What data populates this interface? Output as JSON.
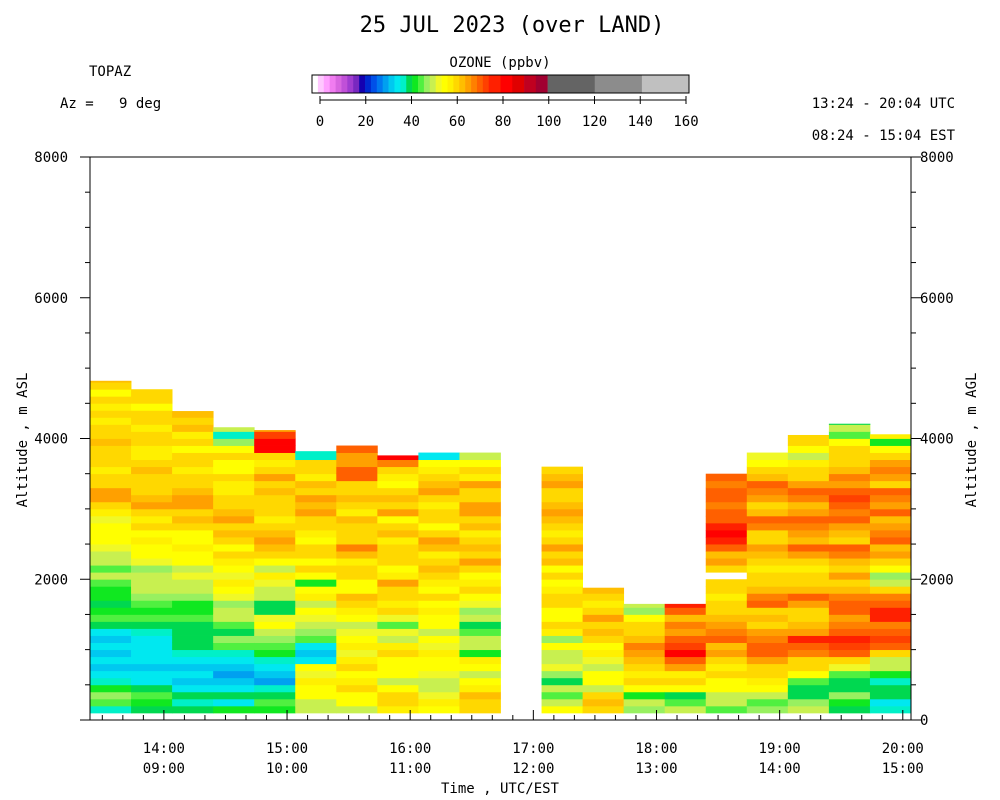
{
  "chart_data": {
    "type": "heatmap",
    "title": "25 JUL 2023 (over LAND)",
    "instrument": "TOPAZ",
    "azimuth_label": "Az =   9 deg",
    "utc_range": "13:24 - 20:04 UTC",
    "est_range": "08:24 - 15:04 EST",
    "colorbar": {
      "title": "OZONE (ppbv)",
      "tick_labels": [
        "0",
        "20",
        "40",
        "60",
        "80",
        "100",
        "120",
        "140",
        "160"
      ],
      "tick_values": [
        0,
        20,
        40,
        60,
        80,
        100,
        120,
        140,
        160
      ],
      "range": [
        0,
        160
      ],
      "stops": [
        {
          "from": 0,
          "to": 2.5,
          "color": "#ffffff"
        },
        {
          "from": 2.5,
          "to": 5,
          "color": "#ffc8ff"
        },
        {
          "from": 5,
          "to": 7.5,
          "color": "#ffa0ff"
        },
        {
          "from": 7.5,
          "to": 10,
          "color": "#f07cf0"
        },
        {
          "from": 10,
          "to": 12.5,
          "color": "#d866e0"
        },
        {
          "from": 12.5,
          "to": 15,
          "color": "#c050d8"
        },
        {
          "from": 15,
          "to": 17.5,
          "color": "#a03cd0"
        },
        {
          "from": 17.5,
          "to": 20,
          "color": "#7828c0"
        },
        {
          "from": 20,
          "to": 22.5,
          "color": "#1400b0"
        },
        {
          "from": 22.5,
          "to": 25,
          "color": "#0028d0"
        },
        {
          "from": 25,
          "to": 27.5,
          "color": "#0050e8"
        },
        {
          "from": 27.5,
          "to": 30,
          "color": "#0078f0"
        },
        {
          "from": 30,
          "to": 32.5,
          "color": "#00a0f0"
        },
        {
          "from": 32.5,
          "to": 35,
          "color": "#00c8f0"
        },
        {
          "from": 35,
          "to": 37.5,
          "color": "#00e8f0"
        },
        {
          "from": 37.5,
          "to": 40,
          "color": "#00f0c8"
        },
        {
          "from": 40,
          "to": 42.5,
          "color": "#00d850"
        },
        {
          "from": 42.5,
          "to": 45,
          "color": "#10e820"
        },
        {
          "from": 45,
          "to": 47.5,
          "color": "#50f040"
        },
        {
          "from": 47.5,
          "to": 50,
          "color": "#98f060"
        },
        {
          "from": 50,
          "to": 52.5,
          "color": "#c8f050"
        },
        {
          "from": 52.5,
          "to": 55,
          "color": "#f0f828"
        },
        {
          "from": 55,
          "to": 57.5,
          "color": "#ffff00"
        },
        {
          "from": 57.5,
          "to": 60,
          "color": "#fff000"
        },
        {
          "from": 60,
          "to": 62.5,
          "color": "#ffd800"
        },
        {
          "from": 62.5,
          "to": 65,
          "color": "#ffbe00"
        },
        {
          "from": 65,
          "to": 67.5,
          "color": "#ffa000"
        },
        {
          "from": 67.5,
          "to": 70,
          "color": "#ff8000"
        },
        {
          "from": 70,
          "to": 72.5,
          "color": "#ff6000"
        },
        {
          "from": 72.5,
          "to": 75,
          "color": "#ff4000"
        },
        {
          "from": 75,
          "to": 80,
          "color": "#ff2000"
        },
        {
          "from": 80,
          "to": 85,
          "color": "#ff0000"
        },
        {
          "from": 85,
          "to": 90,
          "color": "#e00000"
        },
        {
          "from": 90,
          "to": 95,
          "color": "#c00020"
        },
        {
          "from": 95,
          "to": 100,
          "color": "#a00030"
        },
        {
          "from": 100,
          "to": 110,
          "color": "#646464"
        },
        {
          "from": 110,
          "to": 120,
          "color": "#646464"
        },
        {
          "from": 120,
          "to": 130,
          "color": "#8c8c8c"
        },
        {
          "from": 130,
          "to": 140,
          "color": "#8c8c8c"
        },
        {
          "from": 140,
          "to": 150,
          "color": "#c0c0c0"
        },
        {
          "from": 150,
          "to": 160,
          "color": "#c0c0c0"
        }
      ]
    },
    "xaxis": {
      "label": "Time , UTC/EST",
      "range": [
        "13:24",
        "20:04"
      ],
      "tick_times_utc": [
        "14:00",
        "15:00",
        "16:00",
        "17:00",
        "18:00",
        "19:00",
        "20:00"
      ],
      "tick_labels_utc": [
        "14:00",
        "15:00",
        "16:00",
        "17:00",
        "18:00",
        "19:00",
        "20:00"
      ],
      "tick_labels_est": [
        "09:00",
        "10:00",
        "11:00",
        "12:00",
        "13:00",
        "14:00",
        "15:00"
      ]
    },
    "yaxis_left": {
      "label": "Altitude , m ASL",
      "range": [
        0,
        8000
      ],
      "tick_labels": [
        "2000",
        "4000",
        "6000",
        "8000"
      ],
      "tick_values": [
        2000,
        4000,
        6000,
        8000
      ]
    },
    "yaxis_right": {
      "label": "Altitude , m AGL",
      "tick_labels": [
        "0",
        "2000",
        "4000",
        "6000",
        "8000"
      ],
      "tick_values": [
        0,
        2000,
        4000,
        6000,
        8000
      ]
    },
    "profile_layer_thickness_m": 100,
    "profiles": [
      {
        "start": "13:24",
        "end": "13:44",
        "bottom": 100,
        "top": 4820,
        "values": [
          38,
          45,
          48,
          44,
          38,
          36,
          34,
          35,
          33,
          35,
          34,
          36,
          41,
          47,
          44,
          42,
          44,
          43,
          46,
          50,
          47,
          50,
          52,
          54,
          57,
          55,
          56,
          53,
          58,
          61,
          65,
          66,
          62,
          60,
          58,
          61,
          60,
          62,
          64,
          60,
          61,
          58,
          62,
          59,
          60,
          57,
          60,
          64,
          72
        ]
      },
      {
        "start": "13:44",
        "end": "14:04",
        "bottom": 100,
        "top": 4700,
        "values": [
          41,
          44,
          46,
          42,
          36,
          35,
          34,
          36,
          35,
          37,
          35,
          38,
          42,
          46,
          43,
          45,
          48,
          51,
          50,
          52,
          49,
          53,
          55,
          56,
          58,
          57,
          60,
          59,
          62,
          66,
          64,
          61,
          60,
          62,
          63,
          60,
          59,
          58,
          62,
          60,
          58,
          60,
          61,
          56,
          60,
          62,
          66,
          63,
          68
        ]
      },
      {
        "start": "14:04",
        "end": "14:24",
        "bottom": 100,
        "top": 4390,
        "values": [
          40,
          38,
          42,
          36,
          34,
          35,
          33,
          37,
          38,
          42,
          40,
          42,
          41,
          45,
          43,
          44,
          48,
          50,
          52,
          53,
          50,
          55,
          56,
          58,
          57,
          56,
          62,
          64,
          60,
          66,
          65,
          63,
          61,
          60,
          58,
          62,
          60,
          57,
          61,
          59,
          63,
          62,
          64,
          66,
          64,
          62,
          69
        ]
      },
      {
        "start": "14:24",
        "end": "14:44",
        "bottom": 100,
        "top": 4160,
        "values": [
          44,
          37,
          40,
          35,
          33,
          31,
          34,
          36,
          38,
          45,
          48,
          42,
          47,
          50,
          52,
          49,
          53,
          56,
          58,
          54,
          55,
          59,
          60,
          57,
          62,
          64,
          61,
          66,
          63,
          60,
          60,
          58,
          59,
          62,
          56,
          55,
          61,
          57,
          49,
          38,
          52,
          42
        ]
      },
      {
        "start": "14:44",
        "end": "15:04",
        "bottom": 100,
        "top": 4120,
        "values": [
          43,
          46,
          40,
          38,
          30,
          33,
          36,
          38,
          44,
          46,
          48,
          51,
          56,
          53,
          42,
          40,
          50,
          52,
          54,
          58,
          52,
          56,
          60,
          63,
          66,
          64,
          62,
          58,
          60,
          61,
          62,
          63,
          60,
          66,
          62,
          58,
          60,
          80,
          81,
          74,
          65
        ]
      },
      {
        "start": "15:04",
        "end": "15:24",
        "bottom": 100,
        "top": 3820,
        "values": [
          50,
          52,
          55,
          56,
          58,
          53,
          57,
          35,
          33,
          36,
          45,
          48,
          50,
          54,
          55,
          52,
          58,
          57,
          43,
          56,
          60,
          57,
          60,
          62,
          55,
          59,
          60,
          61,
          66,
          64,
          66,
          60,
          63,
          59,
          60,
          61,
          39,
          38
        ]
      },
      {
        "start": "15:24",
        "end": "15:44",
        "bottom": 100,
        "top": 3990,
        "values": [
          52,
          55,
          57,
          60,
          58,
          56,
          61,
          59,
          54,
          58,
          56,
          53,
          50,
          55,
          58,
          60,
          63,
          56,
          55,
          60,
          60,
          58,
          64,
          68,
          62,
          61,
          60,
          64,
          58,
          62,
          64,
          60,
          62,
          70,
          71,
          67,
          65,
          70
        ]
      },
      {
        "start": "15:44",
        "end": "16:04",
        "bottom": 100,
        "top": 3760,
        "values": [
          58,
          62,
          60,
          56,
          52,
          57,
          55,
          56,
          60,
          58,
          50,
          53,
          46,
          54,
          60,
          58,
          62,
          60,
          65,
          58,
          55,
          60,
          60,
          62,
          58,
          63,
          62,
          57,
          66,
          62,
          63,
          60,
          56,
          58,
          62,
          68,
          80
        ]
      },
      {
        "start": "16:04",
        "end": "16:24",
        "bottom": 100,
        "top": 3800,
        "values": [
          56,
          58,
          54,
          52,
          50,
          54,
          56,
          57,
          58,
          54,
          55,
          52,
          55,
          57,
          58,
          56,
          60,
          57,
          59,
          62,
          64,
          60,
          58,
          63,
          65,
          60,
          57,
          60,
          62,
          58,
          61,
          66,
          63,
          60,
          58,
          57,
          35
        ]
      },
      {
        "start": "16:24",
        "end": "16:44",
        "bottom": 100,
        "top": 3820,
        "values": [
          62,
          60,
          64,
          58,
          55,
          50,
          56,
          58,
          44,
          52,
          50,
          46,
          42,
          50,
          48,
          54,
          56,
          60,
          58,
          56,
          62,
          66,
          60,
          64,
          62,
          58,
          63,
          60,
          67,
          65,
          61,
          60,
          66,
          58,
          62,
          56,
          52
        ]
      },
      {
        "start": "17:04",
        "end": "17:24",
        "bottom": 100,
        "top": 3660,
        "values": [
          56,
          52,
          46,
          50,
          42,
          48,
          54,
          52,
          50,
          56,
          48,
          58,
          60,
          57,
          56,
          62,
          60,
          58,
          56,
          62,
          57,
          64,
          61,
          66,
          60,
          59,
          62,
          64,
          67,
          63,
          60,
          61,
          65,
          63,
          60
        ]
      },
      {
        "start": "17:24",
        "end": "17:44",
        "bottom": 100,
        "top": 1880,
        "values": [
          62,
          64,
          60,
          52,
          56,
          55,
          50,
          53,
          58,
          56,
          60,
          64,
          61,
          66,
          62,
          58,
          60,
          64
        ]
      },
      {
        "start": "17:44",
        "end": "18:04",
        "bottom": 100,
        "top": 1650,
        "values": [
          48,
          52,
          44,
          56,
          60,
          58,
          62,
          64,
          66,
          68,
          63,
          61,
          60,
          56,
          48,
          50
        ]
      },
      {
        "start": "18:04",
        "end": "18:24",
        "bottom": 100,
        "top": 1650,
        "values": [
          50,
          45,
          42,
          55,
          60,
          58,
          65,
          70,
          80,
          74,
          70,
          66,
          68,
          64,
          70,
          75
        ]
      },
      {
        "start": "18:24",
        "end": "18:44",
        "bottom": 100,
        "top": 3550,
        "values": [
          45,
          50,
          52,
          55,
          57,
          60,
          58,
          62,
          66,
          64,
          70,
          68,
          66,
          64,
          62,
          60,
          58,
          60,
          62,
          0,
          60,
          66,
          64,
          72,
          78,
          80,
          76,
          72,
          70,
          68,
          72,
          70,
          68,
          70
        ]
      },
      {
        "start": "18:44",
        "end": "19:04",
        "bottom": 100,
        "top": 3880,
        "values": [
          48,
          46,
          52,
          56,
          58,
          60,
          62,
          66,
          70,
          72,
          68,
          66,
          62,
          64,
          60,
          70,
          68,
          64,
          62,
          60,
          58,
          62,
          64,
          66,
          60,
          62,
          68,
          70,
          64,
          62,
          66,
          68,
          70,
          64,
          60,
          56,
          54
        ]
      },
      {
        "start": "19:04",
        "end": "19:24",
        "bottom": 100,
        "top": 4050,
        "values": [
          50,
          48,
          42,
          40,
          46,
          56,
          60,
          62,
          68,
          72,
          78,
          66,
          64,
          60,
          62,
          66,
          70,
          64,
          62,
          60,
          58,
          62,
          66,
          70,
          64,
          66,
          68,
          72,
          66,
          64,
          68,
          70,
          66,
          62,
          60,
          58,
          52,
          56,
          60,
          62
        ]
      },
      {
        "start": "19:24",
        "end": "19:44",
        "bottom": 100,
        "top": 4210,
        "values": [
          42,
          44,
          48,
          40,
          42,
          46,
          54,
          60,
          70,
          74,
          76,
          72,
          68,
          66,
          72,
          70,
          68,
          64,
          60,
          66,
          62,
          64,
          68,
          70,
          60,
          64,
          66,
          70,
          68,
          72,
          74,
          70,
          66,
          68,
          64,
          62,
          60,
          62,
          56,
          45,
          52,
          42
        ]
      },
      {
        "start": "19:44",
        "end": "20:04",
        "bottom": 100,
        "top": 4060,
        "values": [
          38,
          36,
          40,
          42,
          38,
          44,
          50,
          52,
          60,
          70,
          74,
          72,
          68,
          76,
          78,
          72,
          68,
          62,
          52,
          48,
          56,
          60,
          66,
          64,
          70,
          68,
          66,
          64,
          70,
          66,
          68,
          70,
          62,
          66,
          68,
          66,
          62,
          56,
          44,
          58
        ]
      }
    ]
  }
}
